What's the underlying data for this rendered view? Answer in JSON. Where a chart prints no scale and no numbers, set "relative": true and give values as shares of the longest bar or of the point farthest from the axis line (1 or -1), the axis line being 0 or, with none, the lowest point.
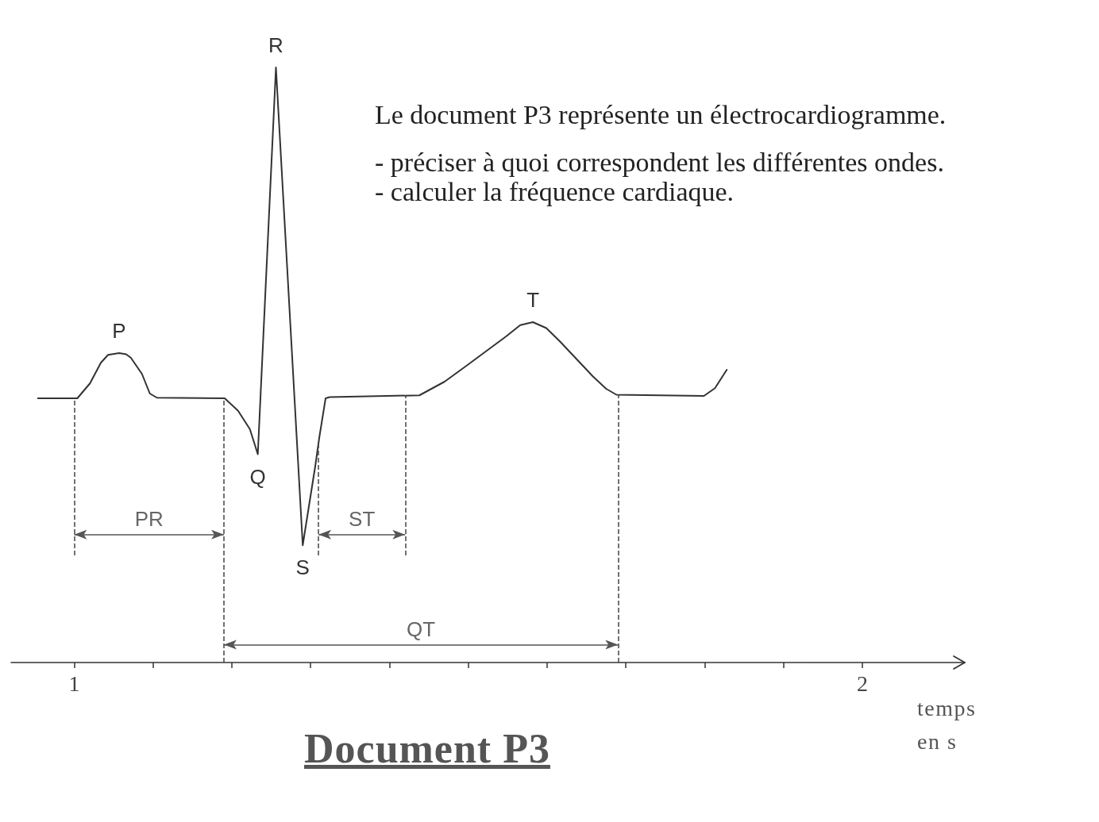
{
  "chart_data": {
    "type": "line",
    "relative": true,
    "title": "Document P3",
    "xlabel": "temps en s",
    "annotations": [
      "Le document P3 représente un électrocardiogramme.",
      "- préciser à quoi correspondent les différentes ondes.",
      "- calculer la fréquence cardiaque.",
      "PR",
      "ST",
      "QT",
      {
        "text": "P",
        "x": 1.057,
        "y": 0.52
      },
      {
        "text": "Q",
        "x": 1.233,
        "y": 0.35
      },
      {
        "text": "R",
        "x": 1.256,
        "y": 1
      },
      {
        "text": "S",
        "x": 1.29,
        "y": 0.197
      },
      {
        "text": "T",
        "x": 1.582,
        "y": 0.572
      }
    ],
    "x": [
      0.954,
      1.004,
      1.02,
      1.034,
      1.043,
      1.057,
      1.066,
      1.072,
      1.086,
      1.096,
      1.105,
      1.191,
      1.208,
      1.223,
      1.233,
      1.256,
      1.29,
      1.306,
      1.311,
      1.319,
      1.324,
      1.438,
      1.47,
      1.497,
      1.548,
      1.566,
      1.582,
      1.599,
      1.616,
      1.658,
      1.675,
      1.688,
      1.799,
      1.813,
      1.828
    ],
    "values": [
      0.444,
      0.444,
      0.469,
      0.504,
      0.517,
      0.52,
      0.518,
      0.512,
      0.485,
      0.452,
      0.445,
      0.444,
      0.423,
      0.392,
      0.35,
      1,
      0.197,
      0.331,
      0.378,
      0.444,
      0.446,
      0.449,
      0.472,
      0.498,
      0.548,
      0.567,
      0.572,
      0.562,
      0.54,
      0.481,
      0.46,
      0.45,
      0.448,
      0.461,
      0.492
    ],
    "color": "#333333",
    "marker": "none",
    "xlim": [
      0.92,
      2.13
    ],
    "xticks": [
      1,
      {
        "value": 1.1,
        "label": null
      },
      {
        "value": 1.2,
        "label": null
      },
      {
        "value": 1.3,
        "label": null
      },
      {
        "value": 1.4,
        "label": null
      },
      {
        "value": 1.5,
        "label": null
      },
      {
        "value": 1.6,
        "label": null
      },
      {
        "value": 1.7,
        "label": null
      },
      {
        "value": 1.8,
        "label": null
      },
      {
        "value": 1.9,
        "label": null
      },
      2
    ],
    "ref_lines": [
      {
        "axis": "x",
        "value": 1.0,
        "line_style": "dashed"
      },
      {
        "axis": "x",
        "value": 1.19,
        "line_style": "dashed"
      },
      {
        "axis": "x",
        "value": 1.31,
        "line_style": "dashed"
      },
      {
        "axis": "x",
        "value": 1.42,
        "line_style": "dashed"
      },
      {
        "axis": "x",
        "value": 1.69,
        "line_style": "dashed"
      }
    ]
  }
}
